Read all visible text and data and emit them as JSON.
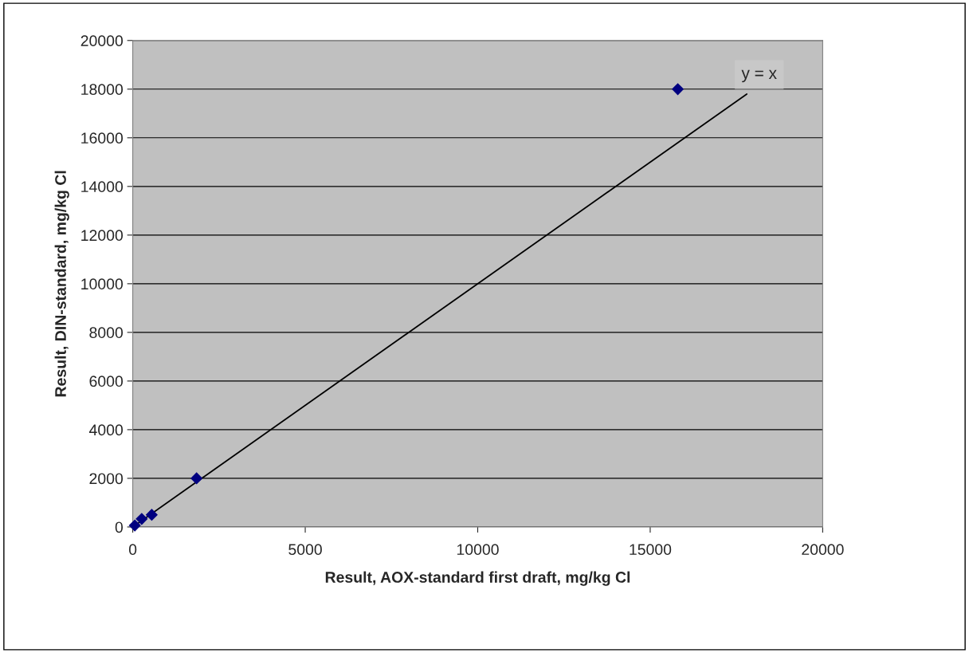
{
  "chart_data": {
    "type": "scatter",
    "xlabel": "Result, AOX-standard first draft, mg/kg Cl",
    "ylabel": "Result, DIN-standard, mg/kg Cl",
    "series": [
      {
        "color": "#000080",
        "marker": "diamond",
        "x": [
          60,
          260,
          550,
          1850,
          15800
        ],
        "values": [
          60,
          330,
          500,
          2000,
          18000
        ]
      },
      {
        "type": "line",
        "color": "#000000",
        "marker": "none",
        "line_style": "solid",
        "x": [
          0,
          17800
        ],
        "values": [
          0,
          17800
        ]
      }
    ],
    "annotations": [
      "y = x"
    ],
    "xlim": [
      0,
      20000
    ],
    "xticks": [
      0,
      5000,
      10000,
      15000,
      20000
    ],
    "ylim": [
      0,
      20000
    ],
    "yticks": [
      0,
      2000,
      4000,
      6000,
      8000,
      10000,
      12000,
      14000,
      16000,
      18000,
      20000
    ],
    "grid": "y",
    "legend": false
  }
}
